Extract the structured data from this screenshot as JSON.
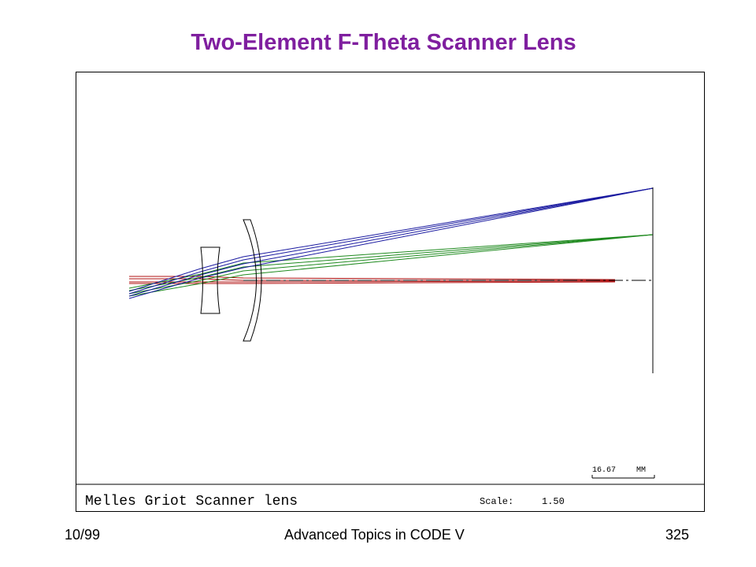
{
  "slide": {
    "title": "Two-Element F-Theta Scanner Lens",
    "footer_left": "10/99",
    "footer_center": "Advanced Topics in CODE V",
    "footer_right": "325"
  },
  "diagram": {
    "lens_name": "Melles Griot Scanner lens",
    "scale_label": "Scale:",
    "scale_value": "1.50",
    "scale_bar_value": "16.67",
    "scale_bar_unit": "MM",
    "colors": {
      "title": "#7f1f9f",
      "ray_blue": "#1a1aa0",
      "ray_green": "#1f8a1f",
      "ray_red": "#b01010",
      "lines": "#000000"
    }
  }
}
